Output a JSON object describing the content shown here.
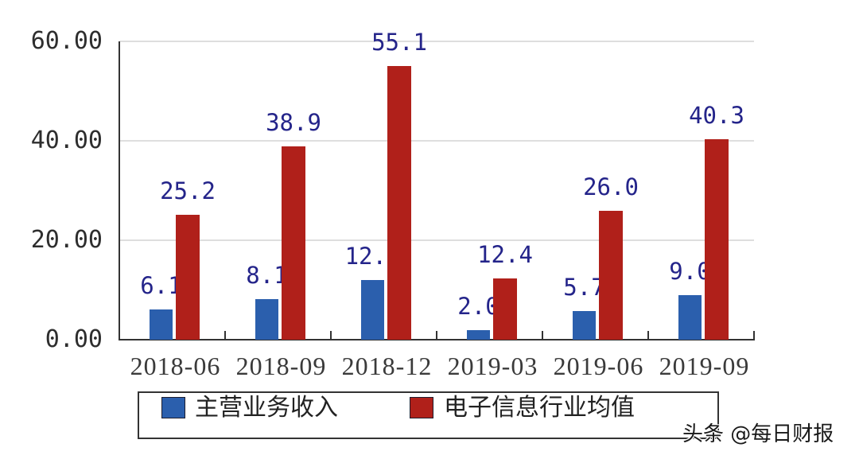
{
  "chart_data": {
    "type": "bar",
    "title": "",
    "xlabel": "",
    "ylabel": "",
    "categories": [
      "2018-06",
      "2018-09",
      "2018-12",
      "2019-03",
      "2019-06",
      "2019-09"
    ],
    "series": [
      {
        "name": "主营业务收入",
        "color": "#2b5fad",
        "values": [
          6.1,
          8.1,
          12.0,
          2.0,
          5.7,
          9.0
        ],
        "labels": [
          "6.1",
          "8.1",
          "12.0",
          "2.0",
          "5.7",
          "9.0"
        ],
        "labels_visible": [
          "6.:",
          "8.:",
          "12.",
          "2.(",
          "5.7",
          "9.("
        ]
      },
      {
        "name": "电子信息行业均值",
        "color": "#b0201a",
        "values": [
          25.2,
          38.9,
          55.1,
          12.4,
          26.0,
          40.3
        ],
        "labels": [
          "25.2",
          "38.9",
          "55.1",
          "12.4",
          "26.0",
          "40.3"
        ]
      }
    ],
    "yticks": [
      "0.00",
      "20.00",
      "40.00",
      "60.00"
    ],
    "ytick_values": [
      0,
      20,
      40,
      60
    ],
    "ylim": [
      0,
      60
    ],
    "grid": true,
    "legend_position": "bottom"
  },
  "legend": {
    "items": [
      {
        "label": "主营业务收入",
        "color": "#2b5fad"
      },
      {
        "label": "电子信息行业均值",
        "color": "#b0201a"
      }
    ]
  },
  "watermark": "头条 @每日财报"
}
